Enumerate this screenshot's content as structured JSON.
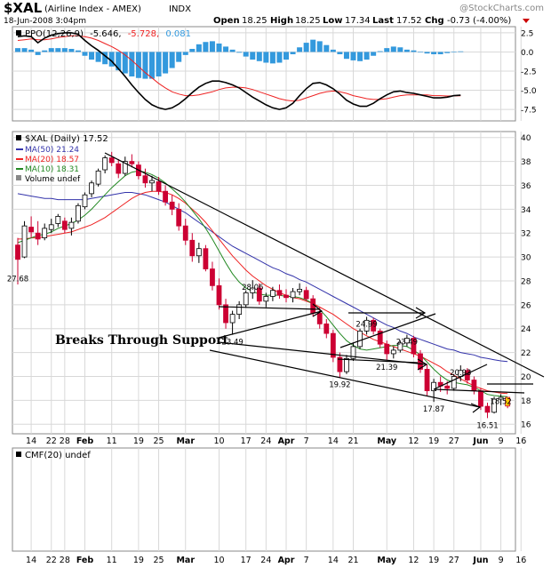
{
  "header": {
    "symbol": "$XAL",
    "name": "(Airline Index - AMEX)",
    "exchange": "INDX",
    "watermark": "@StockCharts.com",
    "date": "18-Jun-2008 3:04pm",
    "open_label": "Open",
    "open": "18.25",
    "high_label": "High",
    "high": "18.25",
    "low_label": "Low",
    "low": "17.34",
    "last_label": "Last",
    "last": "17.52",
    "chg_label": "Chg",
    "chg": "-0.73 (-4.00%)"
  },
  "colors": {
    "candle_down": "#cc0033",
    "candle_up": "#ffffff",
    "ma50": "#3333aa",
    "ma20": "#ee2222",
    "ma10": "#228822",
    "ppo_line": "#000000",
    "ppo_signal": "#ee2222",
    "ppo_hist": "#3399dd",
    "grid": "#d8d8d8"
  },
  "chart_data": [
    {
      "type": "bar",
      "panel": "PPO",
      "legend": {
        "label": "PPO(12,26,9)",
        "v1": "-5.646,",
        "v2": "-5.728,",
        "v3": "0.081"
      },
      "ticks": [
        "2.5",
        "0.0",
        "-2.5",
        "-5.0",
        "-7.5"
      ],
      "ylim": [
        -9,
        3.3
      ],
      "ppo": [
        2.0,
        2.1,
        2.0,
        1.2,
        1.8,
        2.2,
        2.4,
        2.5,
        2.5,
        2.3,
        1.5,
        0.8,
        0.2,
        -0.5,
        -1.2,
        -2.2,
        -3.2,
        -4.3,
        -5.3,
        -6.2,
        -6.9,
        -7.3,
        -7.5,
        -7.3,
        -6.8,
        -6.1,
        -5.3,
        -4.6,
        -4.1,
        -3.8,
        -3.8,
        -4.0,
        -4.3,
        -4.7,
        -5.3,
        -5.9,
        -6.4,
        -6.9,
        -7.3,
        -7.5,
        -7.3,
        -6.7,
        -5.7,
        -4.8,
        -4.1,
        -4.0,
        -4.3,
        -4.8,
        -5.5,
        -6.3,
        -6.8,
        -7.1,
        -7.1,
        -6.7,
        -6.1,
        -5.6,
        -5.2,
        -5.1,
        -5.3,
        -5.4,
        -5.6,
        -5.8,
        -6.0,
        -6.0,
        -5.9,
        -5.7,
        -5.65
      ],
      "signal": [
        1.5,
        1.6,
        1.7,
        1.6,
        1.6,
        1.7,
        1.9,
        2.0,
        2.1,
        2.1,
        2.0,
        1.8,
        1.5,
        1.1,
        0.7,
        0.2,
        -0.4,
        -1.1,
        -1.9,
        -2.7,
        -3.4,
        -4.1,
        -4.7,
        -5.2,
        -5.5,
        -5.7,
        -5.7,
        -5.6,
        -5.4,
        -5.2,
        -4.9,
        -4.7,
        -4.6,
        -4.6,
        -4.7,
        -4.9,
        -5.2,
        -5.5,
        -5.8,
        -6.1,
        -6.3,
        -6.4,
        -6.3,
        -6.0,
        -5.7,
        -5.4,
        -5.2,
        -5.1,
        -5.2,
        -5.4,
        -5.7,
        -5.9,
        -6.1,
        -6.2,
        -6.2,
        -6.1,
        -5.9,
        -5.7,
        -5.6,
        -5.6,
        -5.6,
        -5.6,
        -5.7,
        -5.7,
        -5.75,
        -5.74,
        -5.73
      ],
      "hist": [
        0.5,
        0.5,
        0.3,
        -0.4,
        0.2,
        0.5,
        0.5,
        0.5,
        0.4,
        0.2,
        -0.5,
        -1.0,
        -1.3,
        -1.6,
        -1.9,
        -2.4,
        -2.8,
        -3.2,
        -3.4,
        -3.5,
        -3.5,
        -3.2,
        -2.8,
        -2.1,
        -1.3,
        -0.4,
        0.4,
        1.0,
        1.3,
        1.4,
        1.1,
        0.7,
        0.3,
        -0.1,
        -0.6,
        -1.0,
        -1.2,
        -1.4,
        -1.5,
        -1.4,
        -1.0,
        -0.3,
        0.6,
        1.2,
        1.6,
        1.4,
        0.9,
        0.3,
        -0.3,
        -0.9,
        -1.1,
        -1.2,
        -1.0,
        -0.5,
        0.1,
        0.5,
        0.7,
        0.6,
        0.3,
        0.2,
        0.0,
        -0.2,
        -0.3,
        -0.3,
        -0.15,
        0.04,
        0.08
      ]
    },
    {
      "type": "candlestick",
      "panel": "Price",
      "legend": {
        "daily": "$XAL (Daily) 17.52",
        "ma50": "MA(50) 21.24",
        "ma20": "MA(20) 18.57",
        "ma10": "MA(10) 18.31",
        "volume": "Volume undef"
      },
      "ticks": [
        "40",
        "38",
        "36",
        "34",
        "32",
        "30",
        "28",
        "26",
        "24",
        "22",
        "20",
        "18",
        "16"
      ],
      "ylim": [
        15.2,
        40.5
      ],
      "ohlc": [
        [
          31.0,
          31.6,
          27.7,
          29.8
        ],
        [
          30.0,
          33.0,
          29.9,
          32.6
        ],
        [
          32.5,
          33.4,
          31.6,
          32.1
        ],
        [
          32.0,
          33.0,
          31.0,
          31.5
        ],
        [
          31.6,
          32.8,
          31.4,
          32.4
        ],
        [
          32.3,
          33.2,
          32.0,
          32.7
        ],
        [
          32.8,
          33.6,
          32.5,
          33.4
        ],
        [
          33.0,
          33.3,
          32.0,
          32.3
        ],
        [
          32.4,
          33.3,
          31.8,
          32.9
        ],
        [
          33.0,
          34.5,
          32.8,
          34.3
        ],
        [
          34.2,
          35.4,
          34.0,
          35.2
        ],
        [
          35.3,
          36.4,
          35.0,
          36.2
        ],
        [
          36.1,
          37.4,
          35.9,
          37.2
        ],
        [
          37.3,
          38.5,
          37.0,
          38.3
        ],
        [
          38.3,
          38.8,
          37.6,
          37.9
        ],
        [
          37.8,
          38.2,
          36.6,
          37.0
        ],
        [
          37.0,
          38.4,
          36.8,
          38.0
        ],
        [
          38.0,
          38.6,
          37.5,
          37.8
        ],
        [
          37.7,
          38.0,
          36.5,
          36.8
        ],
        [
          36.8,
          37.4,
          35.8,
          36.2
        ],
        [
          36.2,
          36.8,
          35.5,
          36.4
        ],
        [
          36.3,
          36.7,
          35.2,
          35.5
        ],
        [
          35.5,
          36.0,
          34.3,
          34.6
        ],
        [
          34.6,
          35.2,
          33.5,
          34.0
        ],
        [
          34.0,
          34.5,
          32.2,
          32.6
        ],
        [
          32.6,
          33.2,
          31.0,
          31.4
        ],
        [
          31.4,
          32.0,
          29.6,
          30.1
        ],
        [
          30.1,
          31.2,
          29.5,
          30.7
        ],
        [
          30.7,
          31.0,
          28.8,
          29.0
        ],
        [
          29.0,
          29.6,
          27.2,
          27.6
        ],
        [
          27.6,
          28.2,
          25.6,
          26.0
        ],
        [
          26.0,
          26.5,
          24.0,
          24.5
        ],
        [
          24.5,
          25.5,
          23.49,
          25.2
        ],
        [
          25.2,
          26.3,
          24.8,
          26.0
        ],
        [
          26.0,
          27.2,
          25.8,
          27.0
        ],
        [
          27.0,
          28.06,
          26.5,
          27.4
        ],
        [
          27.4,
          27.8,
          26.0,
          26.3
        ],
        [
          26.3,
          27.0,
          25.8,
          26.7
        ],
        [
          26.7,
          27.5,
          26.3,
          27.2
        ],
        [
          27.2,
          27.7,
          26.5,
          26.8
        ],
        [
          26.8,
          27.3,
          26.2,
          26.6
        ],
        [
          26.6,
          27.4,
          26.2,
          27.1
        ],
        [
          27.1,
          27.8,
          26.8,
          27.3
        ],
        [
          27.2,
          27.5,
          26.3,
          26.5
        ],
        [
          26.5,
          26.8,
          25.0,
          25.3
        ],
        [
          25.3,
          25.8,
          24.0,
          24.4
        ],
        [
          24.4,
          24.8,
          23.2,
          23.6
        ],
        [
          23.6,
          23.9,
          21.2,
          21.6
        ],
        [
          21.6,
          22.0,
          19.92,
          20.4
        ],
        [
          20.4,
          21.8,
          20.2,
          21.5
        ],
        [
          21.5,
          22.8,
          21.3,
          22.5
        ],
        [
          22.5,
          24.0,
          22.3,
          23.8
        ],
        [
          23.8,
          24.99,
          23.5,
          24.7
        ],
        [
          24.7,
          24.9,
          23.5,
          23.8
        ],
        [
          23.8,
          24.0,
          22.4,
          22.7
        ],
        [
          22.7,
          23.0,
          21.39,
          21.9
        ],
        [
          21.9,
          22.5,
          21.5,
          22.2
        ],
        [
          22.2,
          23.0,
          22.0,
          22.8
        ],
        [
          22.8,
          23.49,
          22.5,
          23.2
        ],
        [
          23.2,
          23.4,
          21.6,
          21.9
        ],
        [
          21.9,
          22.2,
          20.3,
          20.6
        ],
        [
          20.6,
          21.0,
          18.4,
          18.8
        ],
        [
          18.8,
          19.8,
          17.87,
          19.5
        ],
        [
          19.5,
          20.0,
          18.7,
          19.2
        ],
        [
          19.2,
          19.6,
          18.5,
          19.0
        ],
        [
          19.0,
          20.2,
          18.8,
          20.0
        ],
        [
          20.0,
          20.93,
          19.6,
          20.5
        ],
        [
          20.5,
          20.7,
          19.4,
          19.7
        ],
        [
          19.7,
          20.0,
          18.5,
          18.8
        ],
        [
          18.8,
          19.0,
          17.2,
          17.5
        ],
        [
          17.5,
          17.8,
          16.51,
          17.0
        ],
        [
          17.0,
          18.3,
          16.9,
          18.1
        ],
        [
          18.1,
          18.52,
          17.6,
          18.25
        ],
        [
          18.25,
          18.25,
          17.34,
          17.52
        ]
      ],
      "ma10": [
        31.2,
        31.4,
        31.6,
        31.8,
        31.9,
        32.1,
        32.4,
        32.6,
        32.8,
        33.1,
        33.5,
        34.0,
        34.6,
        35.2,
        35.8,
        36.3,
        36.8,
        37.1,
        37.2,
        37.1,
        36.9,
        36.6,
        36.2,
        35.7,
        35.2,
        34.6,
        33.9,
        33.2,
        32.4,
        31.5,
        30.5,
        29.5,
        28.6,
        27.9,
        27.4,
        27.1,
        26.9,
        26.8,
        26.8,
        26.8,
        26.7,
        26.7,
        26.6,
        26.4,
        26.1,
        25.6,
        25.0,
        24.3,
        23.6,
        23.0,
        22.6,
        22.3,
        22.2,
        22.3,
        22.4,
        22.5,
        22.6,
        22.6,
        22.5,
        22.2,
        21.8,
        21.2,
        20.6,
        20.1,
        19.7,
        19.5,
        19.4,
        19.3,
        19.1,
        18.8,
        18.5,
        18.4,
        18.35,
        18.31
      ],
      "ma20": [
        31.5,
        31.5,
        31.6,
        31.6,
        31.7,
        31.8,
        31.9,
        32.0,
        32.1,
        32.3,
        32.5,
        32.7,
        33.0,
        33.3,
        33.7,
        34.1,
        34.5,
        34.9,
        35.2,
        35.4,
        35.5,
        35.5,
        35.4,
        35.2,
        34.9,
        34.5,
        34.0,
        33.5,
        32.9,
        32.2,
        31.5,
        30.8,
        30.1,
        29.5,
        28.9,
        28.4,
        28.0,
        27.6,
        27.3,
        27.0,
        26.8,
        26.6,
        26.5,
        26.3,
        26.1,
        25.8,
        25.5,
        25.2,
        24.8,
        24.4,
        24.0,
        23.7,
        23.4,
        23.1,
        22.9,
        22.7,
        22.5,
        22.3,
        22.1,
        21.9,
        21.7,
        21.4,
        21.1,
        20.8,
        20.4,
        20.1,
        19.8,
        19.5,
        19.2,
        19.0,
        18.8,
        18.7,
        18.6,
        18.57
      ],
      "ma50": [
        35.3,
        35.2,
        35.1,
        35.0,
        34.9,
        34.9,
        34.8,
        34.8,
        34.8,
        34.8,
        34.8,
        34.9,
        35.0,
        35.1,
        35.2,
        35.3,
        35.4,
        35.4,
        35.3,
        35.2,
        35.0,
        34.8,
        34.6,
        34.3,
        34.0,
        33.7,
        33.3,
        32.9,
        32.5,
        32.1,
        31.7,
        31.3,
        30.9,
        30.6,
        30.3,
        30.0,
        29.7,
        29.4,
        29.1,
        28.9,
        28.6,
        28.4,
        28.1,
        27.9,
        27.6,
        27.3,
        27.0,
        26.7,
        26.4,
        26.1,
        25.8,
        25.5,
        25.2,
        24.9,
        24.6,
        24.3,
        24.1,
        23.8,
        23.6,
        23.3,
        23.1,
        22.9,
        22.7,
        22.5,
        22.3,
        22.2,
        22.0,
        21.9,
        21.8,
        21.6,
        21.5,
        21.4,
        21.3,
        21.24
      ],
      "annotations": [
        {
          "i": 0,
          "v": 27.68,
          "text": "27.68"
        },
        {
          "i": 32,
          "v": 23.49,
          "text": "23.49"
        },
        {
          "i": 35,
          "v": 28.06,
          "text": "28.06"
        },
        {
          "i": 48,
          "v": 19.92,
          "text": "19.92"
        },
        {
          "i": 52,
          "v": 24.99,
          "text": "24.99"
        },
        {
          "i": 55,
          "v": 21.39,
          "text": "21.39"
        },
        {
          "i": 58,
          "v": 23.49,
          "text": "23.49"
        },
        {
          "i": 62,
          "v": 17.87,
          "text": "17.87"
        },
        {
          "i": 66,
          "v": 20.93,
          "text": "20.93"
        },
        {
          "i": 70,
          "v": 16.51,
          "text": "16.51"
        },
        {
          "i": 72,
          "v": 18.52,
          "text": "18.52"
        }
      ],
      "callout": "Breaks Through Support"
    },
    {
      "type": "line",
      "panel": "CMF",
      "legend": "CMF(20) undef"
    }
  ],
  "x_axis": {
    "labels": [
      {
        "i": 2,
        "text": "14"
      },
      {
        "i": 5,
        "text": "22"
      },
      {
        "i": 7,
        "text": "28"
      },
      {
        "i": 10,
        "text": "Feb",
        "bold": true
      },
      {
        "i": 14,
        "text": "11"
      },
      {
        "i": 18,
        "text": "19"
      },
      {
        "i": 21,
        "text": "25"
      },
      {
        "i": 25,
        "text": "Mar",
        "bold": true
      },
      {
        "i": 30,
        "text": "10"
      },
      {
        "i": 34,
        "text": "17"
      },
      {
        "i": 37,
        "text": "24"
      },
      {
        "i": 40,
        "text": "Apr",
        "bold": true
      },
      {
        "i": 43,
        "text": "7"
      },
      {
        "i": 47,
        "text": "14"
      },
      {
        "i": 50,
        "text": "21"
      },
      {
        "i": 55,
        "text": "May",
        "bold": true
      },
      {
        "i": 59,
        "text": "12"
      },
      {
        "i": 62,
        "text": "19"
      },
      {
        "i": 65,
        "text": "27"
      },
      {
        "i": 69,
        "text": "Jun",
        "bold": true
      },
      {
        "i": 72,
        "text": "9"
      },
      {
        "i": 75,
        "text": "16"
      }
    ]
  }
}
